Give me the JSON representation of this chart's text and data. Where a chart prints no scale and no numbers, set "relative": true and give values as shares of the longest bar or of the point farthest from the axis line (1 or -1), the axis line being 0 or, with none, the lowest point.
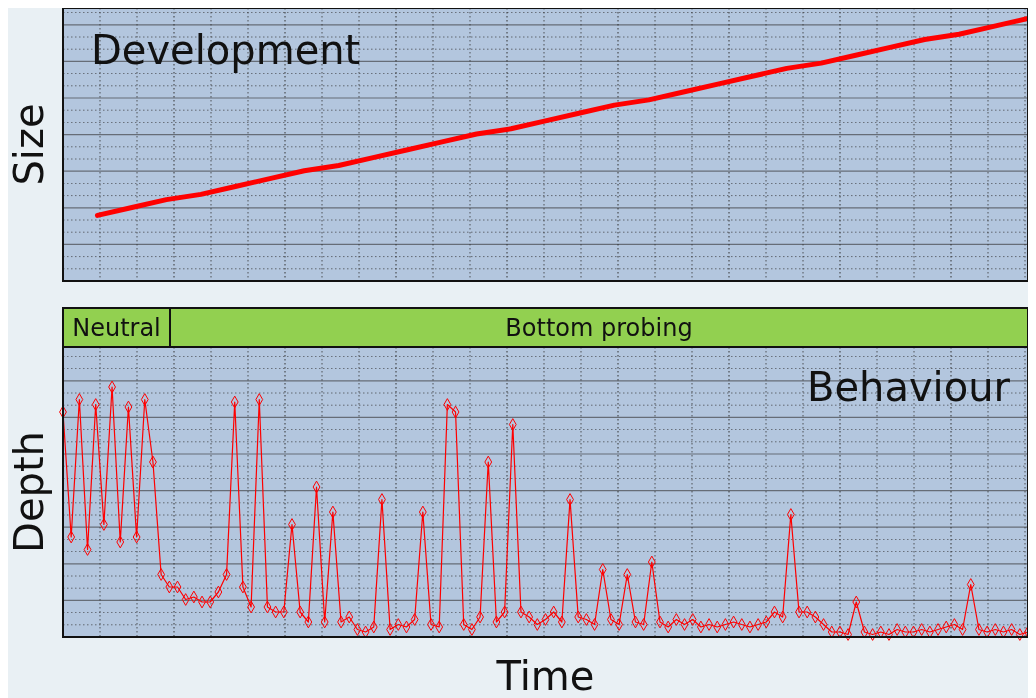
{
  "chart_data": [
    {
      "type": "line",
      "relative": true,
      "ylabel": "Size",
      "annotations": [
        "Development"
      ],
      "grid": true,
      "marker": "none",
      "categories": [
        null,
        null,
        null,
        null,
        null,
        null,
        null,
        null,
        null,
        null,
        null,
        null,
        null,
        null,
        null,
        null,
        null,
        null,
        null,
        null,
        null,
        null,
        null,
        null,
        null,
        null,
        null,
        null,
        null
      ],
      "series": [
        {
          "color": "#ff0000",
          "values": [
            null,
            0.25,
            0.28,
            0.31,
            0.33,
            0.36,
            0.39,
            0.42,
            0.44,
            0.47,
            0.5,
            0.53,
            0.56,
            0.58,
            0.61,
            0.64,
            0.67,
            0.69,
            0.72,
            0.75,
            0.78,
            0.81,
            0.83,
            0.86,
            0.89,
            0.92,
            0.94,
            0.97,
            1.0
          ]
        }
      ]
    },
    {
      "type": "line",
      "relative": true,
      "ylabel": "Depth",
      "xlabel": "Time",
      "annotations": [
        "Behaviour",
        "Neutral",
        "Bottom probing"
      ],
      "grid": true,
      "marker": "diamond",
      "categories": [
        null,
        null,
        null,
        null,
        null,
        null,
        null,
        null,
        null,
        null,
        null,
        null,
        null,
        null,
        null,
        null,
        null,
        null,
        null,
        null,
        null,
        null,
        null,
        null,
        null,
        null,
        null,
        null,
        null,
        null,
        null,
        null,
        null,
        null,
        null,
        null,
        null,
        null,
        null,
        null,
        null,
        null,
        null,
        null,
        null,
        null,
        null,
        null,
        null,
        null,
        null,
        null,
        null,
        null,
        null,
        null,
        null,
        null,
        null,
        null,
        null,
        null,
        null,
        null,
        null,
        null,
        null,
        null,
        null,
        null,
        null,
        null,
        null,
        null,
        null,
        null,
        null,
        null,
        null,
        null,
        null,
        null,
        null,
        null,
        null,
        null,
        null,
        null,
        null,
        null,
        null,
        null,
        null,
        null,
        null,
        null,
        null,
        null,
        null,
        null,
        null,
        null,
        null,
        null,
        null,
        null,
        null,
        null,
        null,
        null,
        null,
        null,
        null,
        null,
        null,
        null,
        null,
        null,
        null
      ],
      "series": [
        {
          "color": "#ff0000",
          "values": [
            0.9,
            0.4,
            0.95,
            0.35,
            0.93,
            0.45,
            1,
            0.38,
            0.92,
            0.4,
            0.95,
            0.7,
            0.25,
            0.2,
            0.2,
            0.15,
            0.16,
            0.14,
            0.14,
            0.18,
            0.25,
            0.94,
            0.2,
            0.12,
            0.95,
            0.12,
            0.1,
            0.1,
            0.45,
            0.1,
            0.06,
            0.6,
            0.06,
            0.5,
            0.06,
            0.08,
            0.03,
            0.02,
            0.04,
            0.55,
            0.03,
            0.05,
            0.04,
            0.07,
            0.5,
            0.05,
            0.04,
            0.93,
            0.9,
            0.05,
            0.03,
            0.08,
            0.7,
            0.06,
            0.1,
            0.85,
            0.1,
            0.08,
            0.05,
            0.07,
            0.1,
            0.06,
            0.55,
            0.08,
            0.07,
            0.05,
            0.27,
            0.07,
            0.05,
            0.25,
            0.06,
            0.05,
            0.3,
            0.06,
            0.04,
            0.07,
            0.05,
            0.07,
            0.04,
            0.05,
            0.04,
            0.05,
            0.06,
            0.05,
            0.04,
            0.05,
            0.06,
            0.1,
            0.08,
            0.49,
            0.1,
            0.1,
            0.08,
            0.05,
            0.02,
            0.02,
            0.01,
            0.14,
            0.02,
            0.01,
            0.02,
            0.01,
            0.03,
            0.02,
            0.02,
            0.03,
            0.02,
            0.03,
            0.04,
            0.05,
            0.03,
            0.21,
            0.03,
            0.02,
            0.03,
            0.02,
            0.03,
            0.01,
            0.02
          ]
        }
      ]
    }
  ]
}
